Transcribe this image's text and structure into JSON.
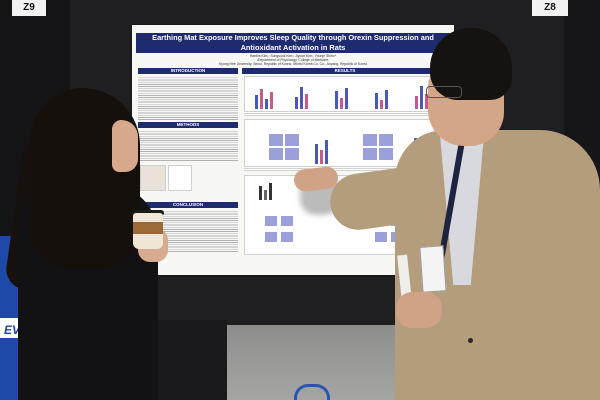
{
  "booth": {
    "left_number": "Z9",
    "right_number": "Z8"
  },
  "poster": {
    "title_line1": "Earthing Mat Exposure Improves Sleep Quality through Orexin Suppression and",
    "title_line2": "Antioxidant Activation in Rats",
    "authors_line1": "Hanbin Kim¹, Sungsook Kim², Jiyoon Kim¹, Yoonje Shim¹*",
    "authors_line2": "¹Department of Physiology, College of Medicine,",
    "authors_line3": "Kyung Hee University, Seoul, Republic of Korea; ²World Korea Co. Co., Anyang, Republic of Korea",
    "sections": {
      "introduction": "INTRODUCTION",
      "methods": "METHODS",
      "conclusion": "CONCLUSION",
      "results": "RESULTS"
    }
  },
  "background": {
    "banner_text": "EVID"
  },
  "colors": {
    "poster_header": "#1e2b6e",
    "figure_bar_primary": "#4c58b5",
    "figure_bar_accent": "#c45a8f",
    "figure_heatmap": "#8a8fd4",
    "banner_blue": "#1f49a8",
    "jacket_beige": "#b39d7d"
  }
}
